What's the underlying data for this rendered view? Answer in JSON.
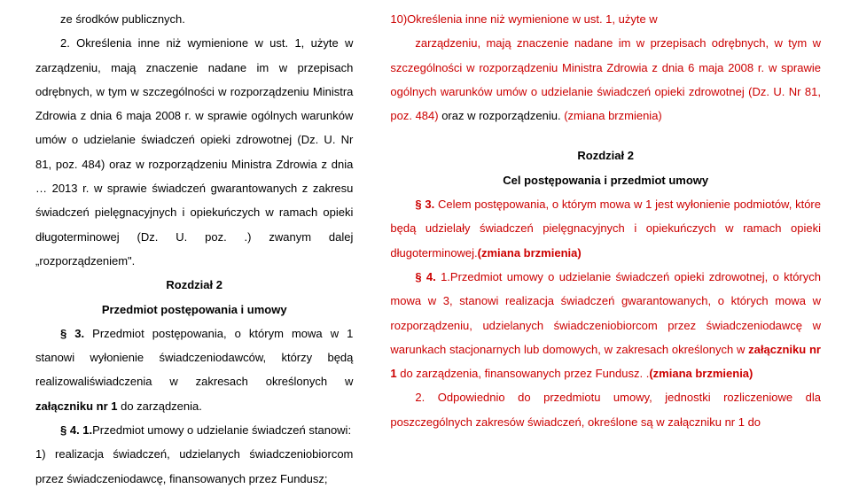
{
  "colors": {
    "text": "#000000",
    "highlight": "#cc0000",
    "background": "#ffffff"
  },
  "typography": {
    "font_family": "Arial",
    "base_size_pt": 10,
    "line_height": 2.1
  },
  "left": {
    "p1": "ze środków publicznych.",
    "p2_a": "2. Określenia inne niż wymienione w ust. 1, użyte w zarządzeniu, mają znaczenie nadane im w przepisach odrębnych, w tym w szczególności w rozporządzeniu Ministra Zdrowia z dnia 6 maja 2008 r. w sprawie ogólnych warunków umów o udzielanie świadczeń opieki zdrowotnej (Dz. U. Nr 81, poz. 484) oraz w rozporządzeniu Ministra Zdrowia z dnia … 2013 r. w sprawie świadczeń gwarantowanych z zakresu świadczeń pielęgnacyjnych i opiekuńczych w ramach opieki długoterminowej (Dz. U. poz. .) zwanym dalej „rozporządzeniem\".",
    "chapter": "Rozdział 2",
    "subject": "Przedmiot postępowania i umowy",
    "p3_pre": "§ 3.",
    "p3": " Przedmiot postępowania, o którym mowa w 1 stanowi wyłonienie świadczeniodawców, którzy będą realizowaliświadczenia w zakresach określonych w ",
    "p3_bold": "załączniku nr 1",
    "p3_after": " do zarządzenia.",
    "p4_pre": "§ 4. 1.",
    "p4": "Przedmiot umowy o udzielanie świadczeń stanowi:",
    "p4_item1": "1) realizacja świadczeń, udzielanych świadczeniobiorcom przez świadczeniodawcę, finansowanych przez Fundusz;"
  },
  "right": {
    "p1_a": "10)Określenia inne niż wymienione w ust. 1, użyte w",
    "p1_b": "zarządzeniu, mają znaczenie nadane im w przepisach odrębnych, w tym w szczególności w rozporządzeniu Ministra Zdrowia z dnia 6 maja 2008 r. w sprawie ogólnych warunków umów o udzielanie świadczeń opieki zdrowotnej (Dz. U. Nr 81, poz. 484)",
    "p1_c": " oraz w rozporządzeniu.",
    "p1_d": " (zmiana brzmienia)",
    "chapter": "Rozdział 2",
    "subject": "Cel postępowania i przedmiot umowy",
    "p3_pre": "§ 3.",
    "p3_a": " Celem postępowania, o którym mowa w 1 jest wyłonienie podmiotów, które będą udzielały świadczeń pielęgnacyjnych i opiekuńczych w ramach opieki długoterminowej.",
    "p3_b": "(zmiana brzmienia)",
    "p4_pre": "§ 4. ",
    "p4_a": "1.Przedmiot umowy o udzielanie świadczeń opieki zdrowotnej, o których mowa w 3, stanowi realizacja świadczeń gwarantowanych, o których mowa w rozporządzeniu, udzielanych świadczeniobiorcom przez świadczeniodawcę w warunkach stacjonarnych lub domowych, w zakresach określonych w ",
    "p4_bold": "załączniku nr 1",
    "p4_b": " do zarządzenia, finansowanych przez Fundusz. .",
    "p4_c": "(zmiana brzmienia)",
    "p5": "2. Odpowiednio do przedmiotu umowy, jednostki rozliczeniowe dla poszczególnych zakresów świadczeń, określone są w załączniku nr 1 do"
  }
}
